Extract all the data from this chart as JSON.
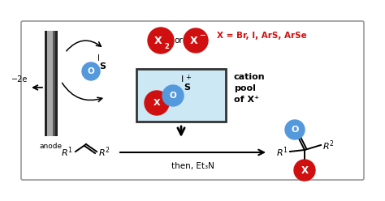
{
  "bg_color": "#ffffff",
  "red": "#d01010",
  "blue": "#5599dd",
  "light_blue": "#cce8f5",
  "title_x_text": "X = Br, I, ArS, ArSe",
  "anode_text": "anode",
  "minus2e_text": "−2e",
  "then_text": "then, Et₃N",
  "cation_lines": [
    "cation",
    "pool",
    "of X⁺"
  ],
  "border_color": "#999999",
  "pool_border": "#333333"
}
